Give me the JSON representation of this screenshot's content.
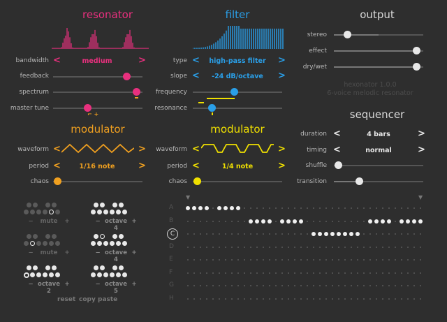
{
  "colors": {
    "pink": "#e8307e",
    "blue": "#2a9fe8",
    "orange": "#f0a020",
    "yellow": "#f0e000",
    "white": "#e8e8e8",
    "grey": "#555555"
  },
  "resonator": {
    "title": "resonator",
    "bandwidth_label": "bandwidth",
    "bandwidth_value": "medium",
    "feedback_label": "feedback",
    "feedback": 0.82,
    "spectrum_label": "spectrum",
    "spectrum": 0.98,
    "master_tune_label": "master tune",
    "master_tune": 0.5,
    "tune_marker": "⌐ +"
  },
  "filter": {
    "title": "filter",
    "type_label": "type",
    "type_value": "high-pass filter",
    "slope_label": "slope",
    "slope_value": "-24 dB/octave",
    "frequency_label": "frequency",
    "frequency": 0.5,
    "resonance_label": "resonance",
    "resonance": 0.22
  },
  "output": {
    "title": "output",
    "stereo_label": "stereo",
    "stereo": 0.17,
    "effect_label": "effect",
    "effect": 0.92,
    "drywet_label": "dry/wet",
    "drywet": 0.92,
    "version": "hexonator 1.0.0",
    "subtitle": "6-voice melodic resonator"
  },
  "mod1": {
    "title": "modulator",
    "waveform_label": "waveform",
    "period_label": "period",
    "period_value": "1/16 note",
    "chaos_label": "chaos",
    "chaos": 0.0
  },
  "mod2": {
    "title": "modulator",
    "waveform_label": "waveform",
    "period_label": "period",
    "period_value": "1/4 note",
    "chaos_label": "chaos",
    "chaos": 0.0
  },
  "sequencer": {
    "title": "sequencer",
    "duration_label": "duration",
    "duration_value": "4 bars",
    "timing_label": "timing",
    "timing_value": "normal",
    "shuffle_label": "shuffle",
    "shuffle": 0.0,
    "transition_label": "transition",
    "transition": 0.3,
    "rows": [
      "A",
      "B",
      "C",
      "D",
      "E",
      "F",
      "G",
      "H"
    ],
    "selected_row": "C"
  },
  "voices": {
    "labels": [
      {
        "minus": "−",
        "text": "mute",
        "plus": "+"
      },
      {
        "minus": "−",
        "text": "octave 4",
        "plus": "+"
      },
      {
        "minus": "−",
        "text": "mute",
        "plus": "+"
      },
      {
        "minus": "−",
        "text": "octave 4",
        "plus": "+"
      },
      {
        "minus": "−",
        "text": "octave 2",
        "plus": "+"
      },
      {
        "minus": "−",
        "text": "octave 5",
        "plus": "+"
      }
    ]
  },
  "actions": {
    "reset": "reset",
    "copy": "copy",
    "paste": "paste"
  },
  "arrows": {
    "left": "<",
    "right": ">"
  }
}
